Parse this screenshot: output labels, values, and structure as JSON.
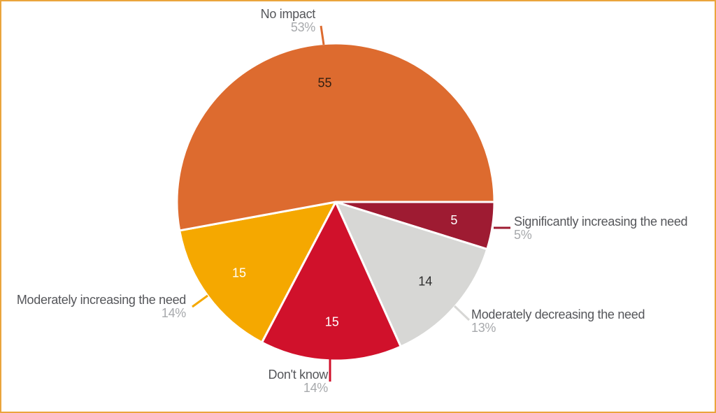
{
  "chart_data": {
    "type": "pie",
    "title": "",
    "direction": "clockwise",
    "start_angle_deg": 0,
    "legend_position": "none",
    "slices": [
      {
        "label": "Significantly increasing the need",
        "value": 5,
        "pct": "5%",
        "color": "#9E1B32",
        "value_color": "#FFFFFF"
      },
      {
        "label": "Moderately decreasing the need",
        "value": 14,
        "pct": "13%",
        "color": "#D7D7D5",
        "value_color": "#2D2D2D"
      },
      {
        "label": "Don't know",
        "value": 15,
        "pct": "14%",
        "color": "#D0112B",
        "value_color": "#FFFFFF"
      },
      {
        "label": "Moderately increasing the need",
        "value": 15,
        "pct": "14%",
        "color": "#F5A800",
        "value_color": "#FFFFFF"
      },
      {
        "label": "No impact",
        "value": 55,
        "pct": "53%",
        "color": "#DD6B2F",
        "value_color": "#301E12"
      }
    ],
    "colors": {
      "label_text": "#55565A",
      "pct_text": "#A7A9AC",
      "separator": "#FFFFFF",
      "background": "#FFFFFF",
      "frame_border": "#EAA53C"
    }
  }
}
